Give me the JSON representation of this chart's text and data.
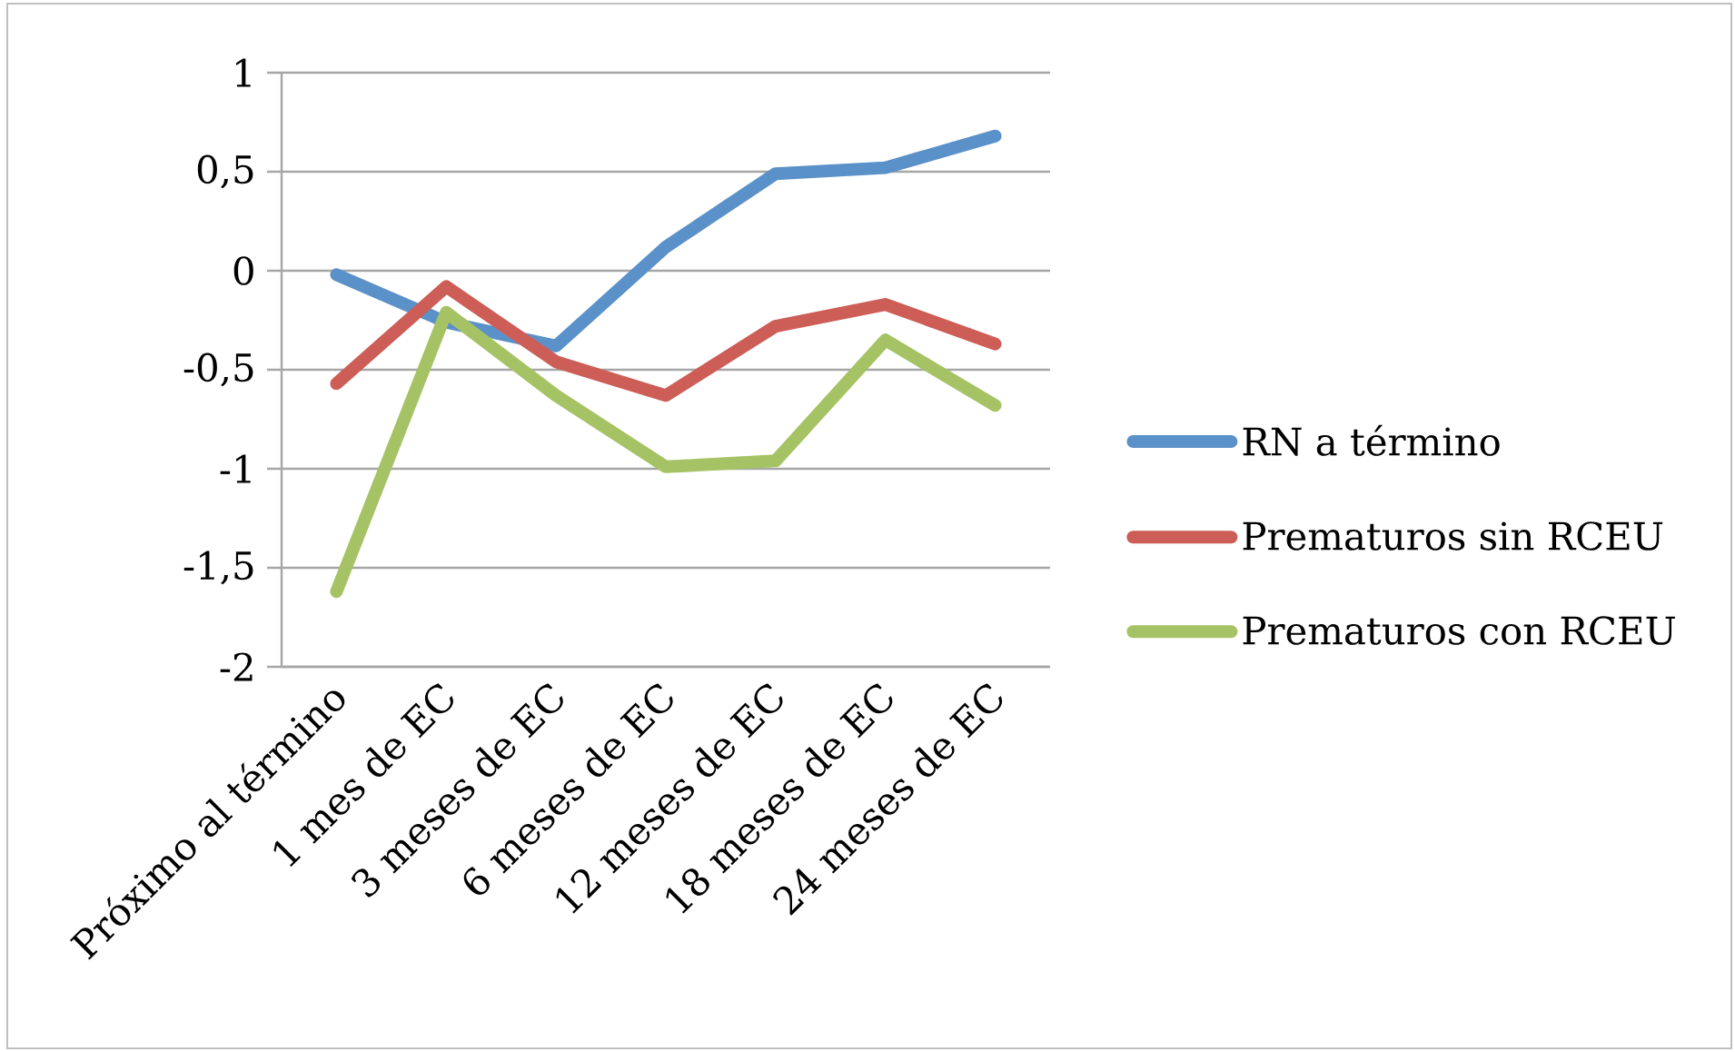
{
  "chart_data": {
    "type": "line",
    "categories": [
      "Próximo al término",
      "1 mes de EC",
      "3 meses de EC",
      "6 meses de EC",
      "12 meses de EC",
      "18 meses de EC",
      "24 meses de EC"
    ],
    "series": [
      {
        "name": "RN a término",
        "color": "#5a91c8",
        "values": [
          -0.02,
          -0.26,
          -0.38,
          0.12,
          0.49,
          0.52,
          0.68
        ]
      },
      {
        "name": "Prematuros sin RCEU",
        "color": "#cd5e57",
        "values": [
          -0.57,
          -0.08,
          -0.46,
          -0.63,
          -0.28,
          -0.17,
          -0.37
        ]
      },
      {
        "name": "Prematuros con RCEU",
        "color": "#a5c365",
        "values": [
          -1.62,
          -0.21,
          -0.63,
          -0.99,
          -0.96,
          -0.35,
          -0.68
        ]
      }
    ],
    "ylim": [
      -2,
      1
    ],
    "yticks": [
      -2,
      {
        "value": -1.5,
        "label": "-1,5"
      },
      -1,
      {
        "value": -0.5,
        "label": "-0,5"
      },
      0,
      {
        "value": 0.5,
        "label": "0,5"
      },
      1
    ],
    "grid": "y",
    "legend": "right",
    "marker": "none",
    "line_style": "solid"
  }
}
